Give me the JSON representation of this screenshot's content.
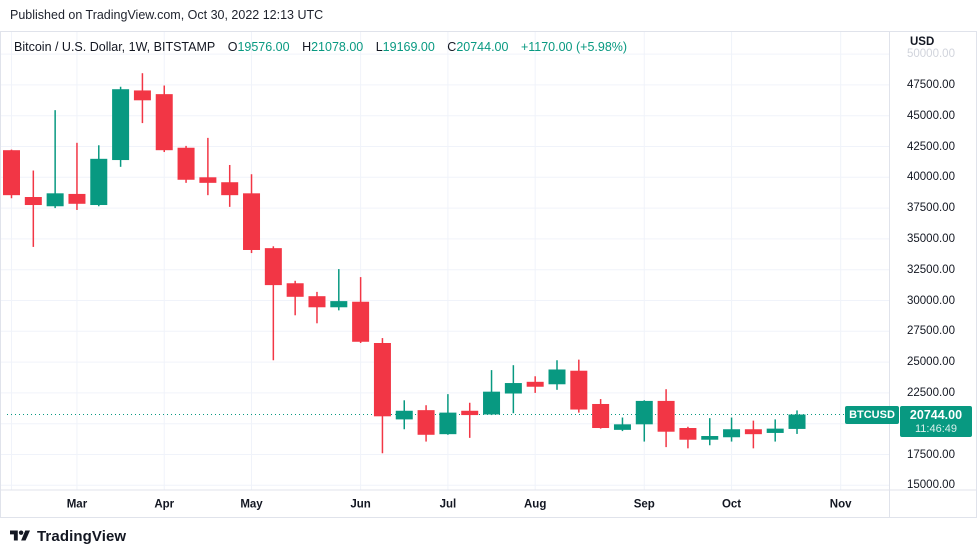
{
  "published_bar": {
    "text": "Published on TradingView.com, Oct 30, 2022 12:13 UTC"
  },
  "legend": {
    "title": "Bitcoin / U.S. Dollar, 1W, BITSTAMP",
    "ohlc": [
      {
        "key": "O",
        "value": "19576.00"
      },
      {
        "key": "H",
        "value": "21078.00"
      },
      {
        "key": "L",
        "value": "19169.00"
      },
      {
        "key": "C",
        "value": "20744.00"
      }
    ],
    "change": "+1170.00 (+5.98%)"
  },
  "axis": {
    "currency_label": "USD",
    "price_ticks": [
      50000,
      47500,
      45000,
      42500,
      40000,
      37500,
      35000,
      32500,
      30000,
      27500,
      25000,
      22500,
      20000,
      17500,
      15000
    ],
    "faded_tick_index": 0
  },
  "price_label": {
    "symbol": "BTCUSD",
    "price": "20744.00",
    "countdown": "11:46:49"
  },
  "footer": {
    "brand": "TradingView"
  },
  "colors": {
    "up": "#089981",
    "down": "#f23645",
    "accent": "#089981",
    "text": "#131722",
    "grid": "#f0f3fa",
    "border": "#e0e3eb",
    "faded": "#d1d4dc"
  },
  "chart_data": {
    "type": "candlestick",
    "title": "Bitcoin / U.S. Dollar",
    "symbol": "BTCUSD",
    "interval": "1W",
    "exchange": "BITSTAMP",
    "ylabel": "USD",
    "ylim": [
      14618,
      51875
    ],
    "grid": true,
    "last_price": 20744.0,
    "countdown": "11:46:49",
    "months": [
      {
        "label": "Mar",
        "week_index": 3
      },
      {
        "label": "Apr",
        "week_index": 7
      },
      {
        "label": "May",
        "week_index": 11
      },
      {
        "label": "Jun",
        "week_index": 16
      },
      {
        "label": "Jul",
        "week_index": 20
      },
      {
        "label": "Aug",
        "week_index": 24
      },
      {
        "label": "Sep",
        "week_index": 29
      },
      {
        "label": "Oct",
        "week_index": 33
      },
      {
        "label": "Nov",
        "week_index": 38
      }
    ],
    "gridline_only_weeks": [
      0
    ],
    "candle_columns": [
      "open",
      "high",
      "low",
      "close"
    ],
    "candles": [
      [
        42200,
        42250,
        38300,
        38550
      ],
      [
        38400,
        40550,
        34350,
        37750
      ],
      [
        37650,
        45450,
        37500,
        38700
      ],
      [
        38650,
        42800,
        37350,
        37850
      ],
      [
        37750,
        42600,
        37650,
        41500
      ],
      [
        41400,
        47350,
        40850,
        47150
      ],
      [
        47050,
        48450,
        44400,
        46250
      ],
      [
        46750,
        47450,
        42050,
        42200
      ],
      [
        42400,
        42550,
        39550,
        39800
      ],
      [
        40000,
        43200,
        38550,
        39550
      ],
      [
        39600,
        41000,
        37600,
        38550
      ],
      [
        38700,
        40250,
        33850,
        34100
      ],
      [
        34250,
        34400,
        25150,
        31250
      ],
      [
        31400,
        31600,
        28800,
        30300
      ],
      [
        30350,
        30700,
        28150,
        29450
      ],
      [
        29450,
        32550,
        29200,
        29950
      ],
      [
        29900,
        31900,
        26550,
        26650
      ],
      [
        26550,
        26950,
        17600,
        20600
      ],
      [
        20350,
        21900,
        19550,
        21050
      ],
      [
        21100,
        21500,
        18550,
        19100
      ],
      [
        19150,
        22400,
        19100,
        20900
      ],
      [
        21050,
        21700,
        18850,
        20700
      ],
      [
        20750,
        24350,
        20700,
        22600
      ],
      [
        22450,
        24750,
        20850,
        23300
      ],
      [
        23400,
        23850,
        22500,
        23000
      ],
      [
        23200,
        25150,
        22750,
        24400
      ],
      [
        24300,
        25200,
        20900,
        21150
      ],
      [
        21600,
        22000,
        19600,
        19650
      ],
      [
        19500,
        20500,
        19400,
        19950
      ],
      [
        19950,
        21900,
        18550,
        21850
      ],
      [
        21850,
        22800,
        18100,
        19350
      ],
      [
        19650,
        19750,
        18000,
        18700
      ],
      [
        18700,
        20450,
        18250,
        19000
      ],
      [
        18900,
        20500,
        18550,
        19550
      ],
      [
        19550,
        20250,
        18000,
        19150
      ],
      [
        19250,
        20350,
        18550,
        19600
      ],
      [
        19576,
        21078,
        19169,
        20744
      ]
    ]
  }
}
